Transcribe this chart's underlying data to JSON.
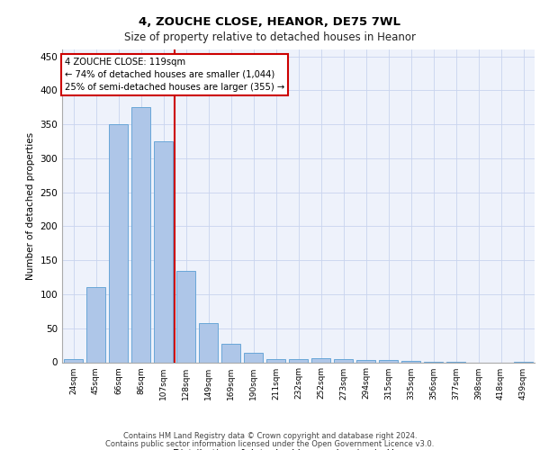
{
  "title1": "4, ZOUCHE CLOSE, HEANOR, DE75 7WL",
  "title2": "Size of property relative to detached houses in Heanor",
  "xlabel": "Distribution of detached houses by size in Heanor",
  "ylabel": "Number of detached properties",
  "categories": [
    "24sqm",
    "45sqm",
    "66sqm",
    "86sqm",
    "107sqm",
    "128sqm",
    "149sqm",
    "169sqm",
    "190sqm",
    "211sqm",
    "232sqm",
    "252sqm",
    "273sqm",
    "294sqm",
    "315sqm",
    "335sqm",
    "356sqm",
    "377sqm",
    "398sqm",
    "418sqm",
    "439sqm"
  ],
  "values": [
    5,
    110,
    350,
    375,
    325,
    135,
    57,
    27,
    14,
    5,
    5,
    6,
    5,
    3,
    3,
    2,
    1,
    1,
    0,
    0,
    1
  ],
  "bar_color": "#aec6e8",
  "bar_edge_color": "#5a9fd4",
  "vline_x": 4.5,
  "vline_color": "#cc0000",
  "annotation_text": "4 ZOUCHE CLOSE: 119sqm\n← 74% of detached houses are smaller (1,044)\n25% of semi-detached houses are larger (355) →",
  "annotation_box_color": "#ffffff",
  "annotation_box_edge": "#cc0000",
  "ylim": [
    0,
    460
  ],
  "yticks": [
    0,
    50,
    100,
    150,
    200,
    250,
    300,
    350,
    400,
    450
  ],
  "footer1": "Contains HM Land Registry data © Crown copyright and database right 2024.",
  "footer2": "Contains public sector information licensed under the Open Government Licence v3.0.",
  "bg_color": "#eef2fb",
  "grid_color": "#c8d4ee"
}
